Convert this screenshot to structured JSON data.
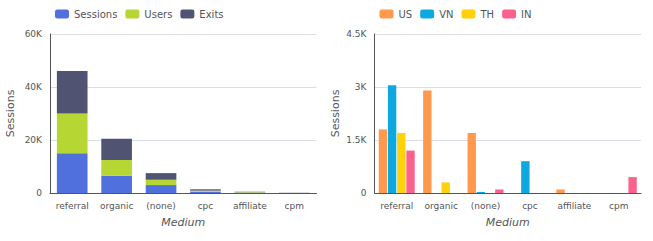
{
  "chart_data": [
    {
      "type": "bar",
      "stacked": true,
      "xlabel": "Medium",
      "ylabel": "Sessions",
      "categories": [
        "referral",
        "organic",
        "(none)",
        "cpc",
        "affiliate",
        "cpm"
      ],
      "series": [
        {
          "name": "Sessions",
          "values": [
            15000,
            6500,
            3000,
            500,
            200,
            50
          ]
        },
        {
          "name": "Users",
          "values": [
            15000,
            6000,
            2000,
            400,
            150,
            40
          ]
        },
        {
          "name": "Exits",
          "values": [
            16000,
            8000,
            2500,
            500,
            100,
            30
          ]
        }
      ],
      "ylim": [
        0,
        60000
      ],
      "yticks": [
        0,
        {
          "value": 20000,
          "label": "20K"
        },
        {
          "value": 40000,
          "label": "40K"
        },
        {
          "value": 60000,
          "label": "60K"
        }
      ],
      "grid": true,
      "legend": "upper left"
    },
    {
      "type": "bar",
      "xlabel": "Medium",
      "ylabel": "Sessions",
      "categories": [
        "referral",
        "organic",
        "(none)",
        "cpc",
        "affiliate",
        "cpm"
      ],
      "series": [
        {
          "name": "US",
          "values": [
            1800,
            2900,
            1700,
            0,
            100,
            0
          ]
        },
        {
          "name": "VN",
          "values": [
            3050,
            0,
            30,
            900,
            0,
            0
          ]
        },
        {
          "name": "TH",
          "values": [
            1700,
            300,
            0,
            0,
            0,
            0
          ]
        },
        {
          "name": "IN",
          "values": [
            1200,
            0,
            100,
            0,
            0,
            450
          ]
        }
      ],
      "ylim": [
        0,
        4500
      ],
      "yticks": [
        0,
        {
          "value": 1500,
          "label": "1.5K"
        },
        {
          "value": 3000,
          "label": "3K"
        },
        {
          "value": 4500,
          "label": "4.5K"
        }
      ],
      "grid": true,
      "legend": "upper left"
    }
  ]
}
